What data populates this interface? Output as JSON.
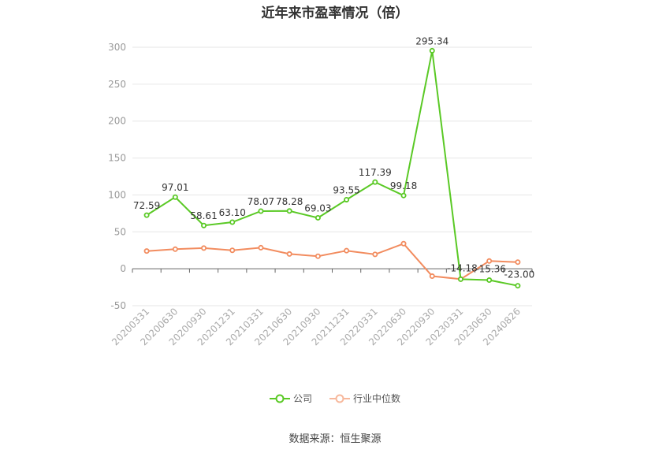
{
  "chart_data": {
    "type": "line",
    "title": "近年来市盈率情况（倍）",
    "categories": [
      "20200331",
      "20200630",
      "20200930",
      "20201231",
      "20210331",
      "20210630",
      "20210930",
      "20211231",
      "20220331",
      "20220630",
      "20220930",
      "20230331",
      "20230630",
      "20240826"
    ],
    "series": [
      {
        "name": "公司",
        "color": "#5ac925",
        "values": [
          72.59,
          97.01,
          58.61,
          63.1,
          78.07,
          78.28,
          69.03,
          93.55,
          117.39,
          99.18,
          295.34,
          -14.18,
          -15.36,
          -23.0
        ],
        "labels": [
          "72.59",
          "97.01",
          "58.61",
          "63.10",
          "78.07",
          "78.28",
          "69.03",
          "93.55",
          "117.39",
          "99.18",
          "295.34",
          "-14.18",
          "-15.36",
          "-23.00"
        ]
      },
      {
        "name": "行业中位数",
        "color": "#f28c5f",
        "values": [
          24,
          26.5,
          28,
          25,
          28.5,
          20,
          17,
          24.5,
          19.5,
          34,
          -10,
          -14,
          10.5,
          9
        ]
      }
    ],
    "ylim": [
      -50,
      300
    ],
    "yticks": [
      -50,
      0,
      50,
      100,
      150,
      200,
      250,
      300
    ],
    "grid": true,
    "legend": "bottom",
    "source": "数据来源：恒生聚源"
  }
}
